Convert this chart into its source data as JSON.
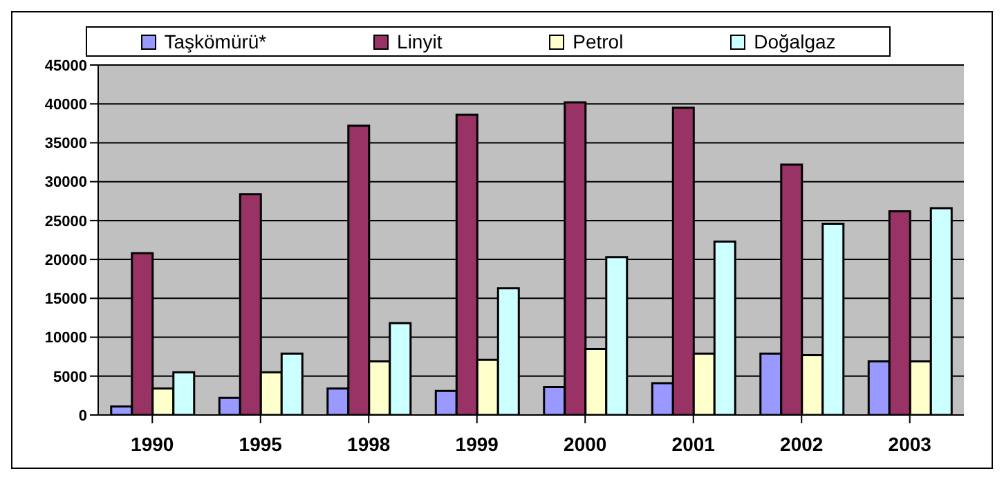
{
  "chart_data": {
    "type": "bar",
    "categories": [
      "1990",
      "1995",
      "1998",
      "1999",
      "2000",
      "2001",
      "2002",
      "2003"
    ],
    "series": [
      {
        "name": "Taşkömürü*",
        "color": "#9999ff",
        "values": [
          1100,
          2200,
          3400,
          3100,
          3600,
          4100,
          7900,
          6900
        ]
      },
      {
        "name": "Linyit",
        "color": "#993366",
        "values": [
          20800,
          28400,
          37200,
          38600,
          40200,
          39500,
          32200,
          26200
        ]
      },
      {
        "name": "Petrol",
        "color": "#ffffcc",
        "values": [
          3400,
          5500,
          6900,
          7100,
          8500,
          7900,
          7700,
          6900
        ]
      },
      {
        "name": "Doğalgaz",
        "color": "#ccffff",
        "values": [
          5500,
          7900,
          11800,
          16300,
          20300,
          22300,
          24600,
          26600
        ]
      }
    ],
    "ylim": [
      0,
      45000
    ],
    "yticks": [
      0,
      5000,
      10000,
      15000,
      20000,
      25000,
      30000,
      35000,
      40000,
      45000
    ],
    "grid": "y",
    "legend": "top"
  }
}
